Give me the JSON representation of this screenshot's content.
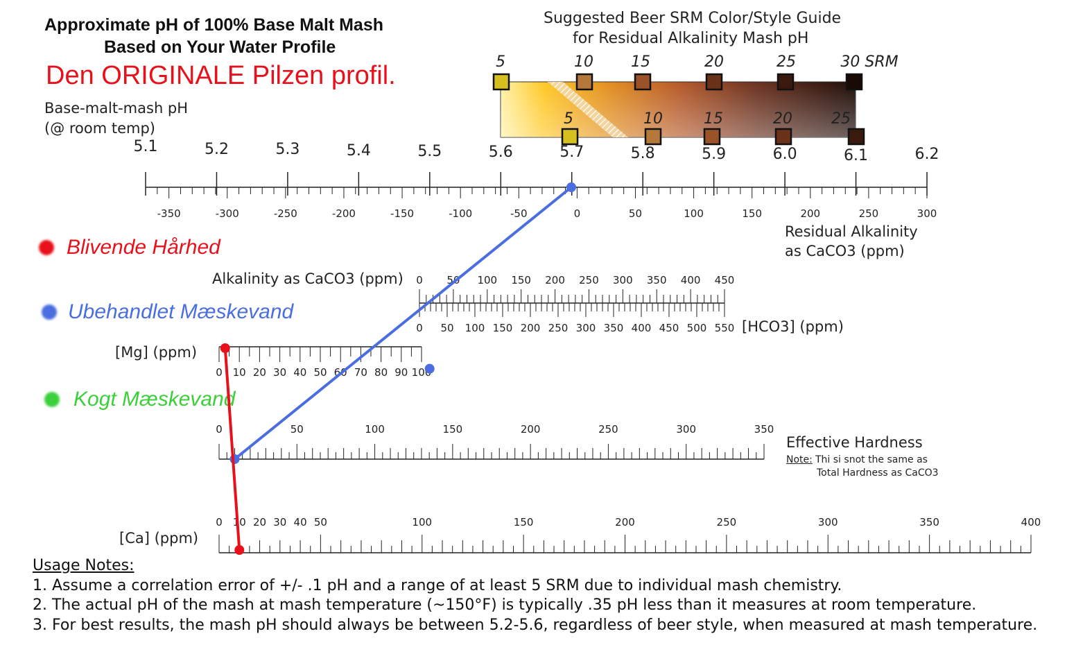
{
  "title": {
    "line1": "Approximate pH of 100% Base Malt Mash",
    "line2": "Based on Your Water Profile",
    "subtitle": "Den ORIGINALE Pilzen profil."
  },
  "ph_axis": {
    "label_line1": "Base-malt-mash pH",
    "label_line2": "(@ room temp)",
    "ticks": [
      "5.1",
      "5.2",
      "5.3",
      "5.4",
      "5.5",
      "5.6",
      "5.7",
      "5.8",
      "5.9",
      "6.0",
      "6.1",
      "6.2"
    ]
  },
  "ra_axis": {
    "ticks": [
      "-350",
      "-300",
      "-250",
      "-200",
      "-150",
      "-100",
      "-50",
      "0",
      "50",
      "100",
      "150",
      "200",
      "250",
      "300"
    ],
    "label_line1": "Residual Alkalinity",
    "label_line2": "as CaCO3 (ppm)"
  },
  "srm_guide": {
    "title_line1": "Suggested Beer SRM Color/Style Guide",
    "title_line2": "for Residual Alkalinity Mash pH",
    "top_labels": [
      "5",
      "10",
      "15",
      "20",
      "25",
      "30 SRM"
    ],
    "bottom_labels": [
      "5",
      "10",
      "15",
      "20",
      "25"
    ],
    "top_colors": [
      "#d6c020",
      "#b5773a",
      "#9a5228",
      "#6a3218",
      "#3a1a0e",
      "#1a0a06"
    ],
    "bottom_colors": [
      "#d6c020",
      "#b5773a",
      "#9a5228",
      "#6a3218",
      "#3a1a0e"
    ]
  },
  "alkalinity_scale": {
    "label": "Alkalinity as CaCO3 (ppm)",
    "ticks": [
      "0",
      "50",
      "100",
      "150",
      "200",
      "250",
      "300",
      "350",
      "400",
      "450"
    ],
    "hco3_ticks": [
      "0",
      "50",
      "100",
      "150",
      "200",
      "250",
      "300",
      "350",
      "400",
      "450",
      "500",
      "550"
    ],
    "hco3_label": "[HCO3] (ppm)"
  },
  "mg_scale": {
    "label": "[Mg] (ppm)",
    "ticks": [
      "0",
      "10",
      "20",
      "30",
      "40",
      "50",
      "60",
      "70",
      "80",
      "90",
      "100"
    ]
  },
  "effective_hardness": {
    "ticks": [
      "0",
      "50",
      "100",
      "150",
      "200",
      "250",
      "300",
      "350"
    ],
    "label": "Effective Hardness",
    "note_prefix": "Note:",
    "note_line1": "Thi si snot the same as",
    "note_line2": "Total Hardness as CaCO3"
  },
  "ca_scale": {
    "label": "[Ca] (ppm)",
    "ticks": [
      "0",
      "10",
      "20",
      "30",
      "40",
      "50",
      "100",
      "150",
      "200",
      "250",
      "300",
      "350",
      "400"
    ]
  },
  "legend": [
    {
      "label": "Blivende Hårhed",
      "color": "#e8111b"
    },
    {
      "label": "Ubehandlet Mæskevand",
      "color": "#4a6ee0"
    },
    {
      "label": "Kogt Mæskevand",
      "color": "#3ccf3c"
    }
  ],
  "lines": {
    "blue": {
      "color": "#4a6ee0",
      "alkalinity_ppm": 15,
      "effective_hardness": 10,
      "residual_alkalinity": -5,
      "ph": 5.7
    },
    "red": {
      "color": "#e8111b",
      "mg_ppm": 3,
      "ca_ppm": 10
    }
  },
  "usage": {
    "heading": "Usage Notes:",
    "notes": [
      "1. Assume a correlation error of +/- .1 pH and a range of at least 5 SRM due to individual mash chemistry.",
      "2. The actual pH of the mash at mash temperature (~150°F) is typically .35 pH less than it measures at room temperature.",
      "3. For best results, the mash pH should always be between 5.2-5.6, regardless of beer style, when measured at mash temperature."
    ]
  }
}
